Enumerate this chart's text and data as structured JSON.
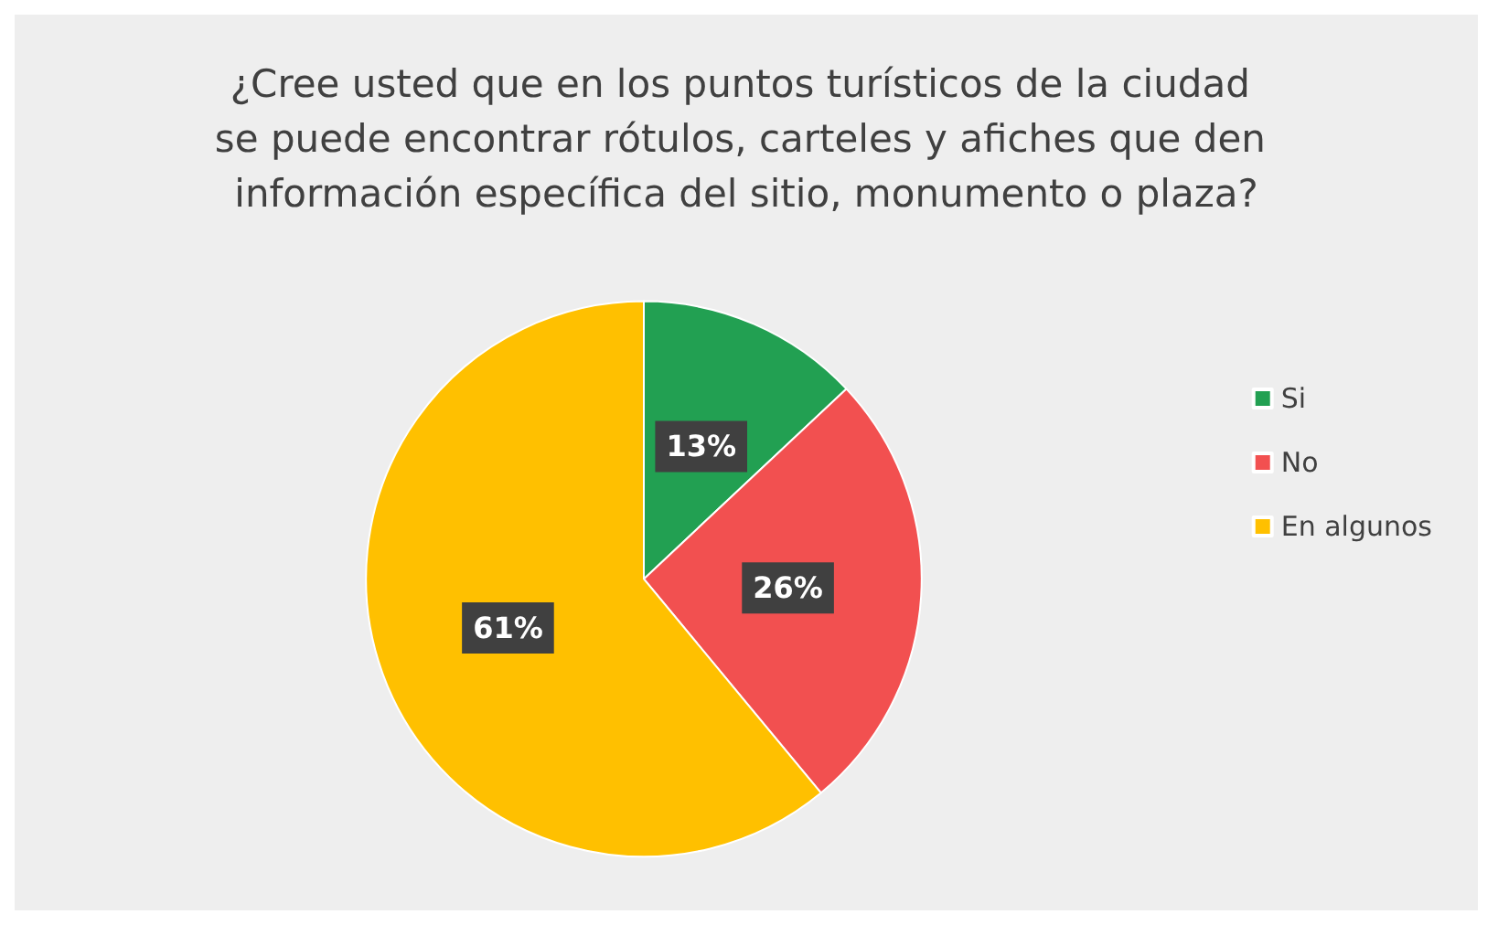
{
  "chart_data": {
    "type": "pie",
    "title": "¿Cree usted que en los puntos turísticos de la ciudad se puede encontrar rótulos, carteles y afiches que den información específica del sitio, monumento o plaza?",
    "categories": [
      "Si",
      "No",
      "En algunos"
    ],
    "values": [
      13,
      26,
      61
    ],
    "colors": [
      "#22a052",
      "#f25050",
      "#ffc000"
    ],
    "value_labels": [
      "13%",
      "26%",
      "61%"
    ],
    "legend": "right"
  }
}
